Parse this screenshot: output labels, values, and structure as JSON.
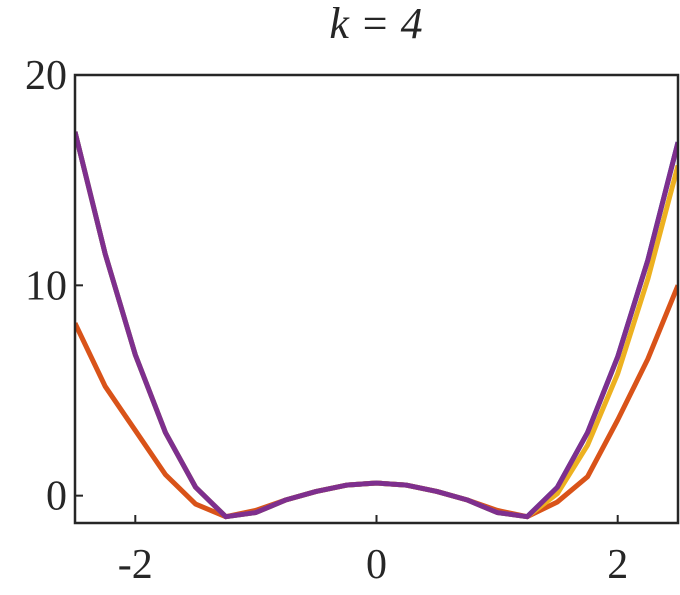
{
  "chart_data": {
    "type": "line",
    "title": "k = 4",
    "x": [
      -2.5,
      -2.25,
      -2,
      -1.75,
      -1.5,
      -1.25,
      -1,
      -0.75,
      -0.5,
      -0.25,
      0,
      0.25,
      0.5,
      0.75,
      1,
      1.25,
      1.5,
      1.75,
      2,
      2.25,
      2.5
    ],
    "series": [
      {
        "color": "#0072BD",
        "values": [
          17.3,
          11.5,
          6.7,
          3.0,
          0.4,
          -1.0,
          -0.8,
          -0.2,
          0.2,
          0.5,
          0.6,
          0.5,
          0.2,
          -0.2,
          -0.8,
          -1.0,
          0.4,
          3.0,
          6.6,
          11.2,
          16.8
        ]
      },
      {
        "color": "#D95319",
        "values": [
          8.2,
          5.2,
          3.1,
          1.0,
          -0.4,
          -1.0,
          -0.7,
          -0.2,
          0.2,
          0.5,
          0.6,
          0.5,
          0.2,
          -0.2,
          -0.7,
          -1.0,
          -0.3,
          0.9,
          3.6,
          6.5,
          10.0
        ]
      },
      {
        "color": "#EDB120",
        "values": [
          17.3,
          11.5,
          6.7,
          3.0,
          0.4,
          -1.0,
          -0.8,
          -0.2,
          0.2,
          0.5,
          0.6,
          0.5,
          0.2,
          -0.2,
          -0.8,
          -1.0,
          0.1,
          2.4,
          5.8,
          10.3,
          15.7
        ]
      },
      {
        "color": "#7E2F8E",
        "values": [
          17.3,
          11.5,
          6.7,
          3.0,
          0.4,
          -1.0,
          -0.8,
          -0.2,
          0.2,
          0.5,
          0.6,
          0.5,
          0.2,
          -0.2,
          -0.8,
          -1.0,
          0.4,
          3.0,
          6.6,
          11.2,
          16.8
        ]
      }
    ],
    "xlim": [
      -2.5,
      2.5
    ],
    "ylim": [
      -1.3,
      20
    ],
    "xticks": [
      -2,
      0,
      2
    ],
    "yticks": [
      0,
      10,
      20
    ]
  }
}
